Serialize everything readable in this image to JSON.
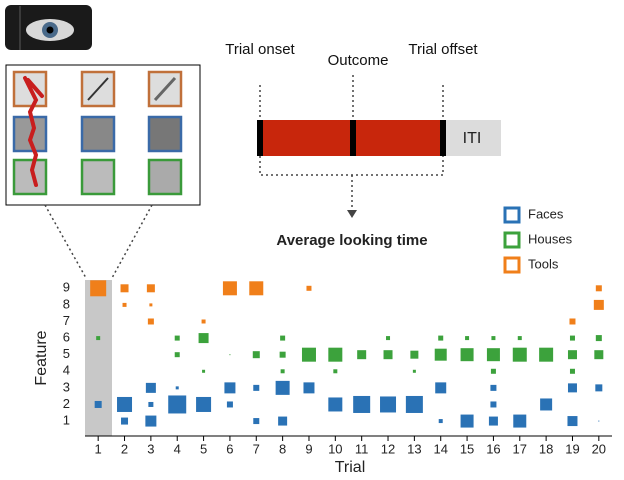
{
  "timeline": {
    "labels": [
      "Trial onset",
      "Outcome",
      "Trial offset"
    ],
    "iti": "ITI",
    "result": "Average looking time"
  },
  "chart_data": {
    "type": "matrix",
    "xlabel": "Trial",
    "ylabel": "Feature",
    "x": [
      1,
      2,
      3,
      4,
      5,
      6,
      7,
      8,
      9,
      10,
      11,
      12,
      13,
      14,
      15,
      16,
      17,
      18,
      19,
      20
    ],
    "xlim": [
      0.5,
      20.5
    ],
    "ylim": [
      0.1,
      9.5
    ],
    "yticks": [
      1,
      2,
      3,
      4,
      5,
      6,
      7,
      8,
      9
    ],
    "series": [
      {
        "name": "Faces",
        "color": "#2a72b5",
        "values": [
          [
            null,
            0.35,
            0.55,
            null,
            null,
            null,
            0.3,
            0.45,
            null,
            null,
            null,
            null,
            null,
            0.2,
            0.65,
            0.45,
            0.65,
            null,
            0.5,
            0.05
          ],
          [
            0.35,
            0.75,
            0.25,
            0.9,
            0.75,
            0.3,
            null,
            null,
            null,
            0.7,
            0.85,
            0.8,
            0.85,
            null,
            null,
            0.3,
            null,
            0.6,
            null,
            null
          ],
          [
            null,
            null,
            0.5,
            0.15,
            null,
            0.55,
            0.3,
            0.7,
            0.55,
            null,
            null,
            null,
            null,
            0.55,
            null,
            0.3,
            null,
            null,
            0.45,
            0.35
          ]
        ]
      },
      {
        "name": "Houses",
        "color": "#3ca23c",
        "values": [
          [
            null,
            null,
            null,
            null,
            0.15,
            null,
            null,
            0.2,
            null,
            0.2,
            null,
            null,
            0.15,
            null,
            null,
            0.25,
            null,
            null,
            0.25,
            null
          ],
          [
            null,
            null,
            null,
            0.25,
            null,
            0.05,
            0.35,
            0.3,
            0.7,
            0.7,
            0.45,
            0.45,
            0.4,
            0.6,
            0.65,
            0.65,
            0.7,
            0.7,
            0.45,
            0.45
          ],
          [
            0.2,
            null,
            null,
            0.25,
            0.5,
            null,
            null,
            0.25,
            null,
            null,
            null,
            0.2,
            null,
            0.25,
            0.2,
            0.2,
            0.2,
            null,
            0.25,
            0.3
          ]
        ]
      },
      {
        "name": "Tools",
        "color": "#f07f1a",
        "values": [
          [
            null,
            null,
            0.3,
            null,
            0.2,
            null,
            null,
            null,
            null,
            null,
            null,
            null,
            null,
            null,
            null,
            null,
            null,
            null,
            0.3,
            null
          ],
          [
            null,
            0.2,
            0.15,
            null,
            null,
            null,
            null,
            null,
            null,
            null,
            null,
            null,
            null,
            null,
            null,
            null,
            null,
            null,
            null,
            0.5
          ],
          [
            0.8,
            0.4,
            0.4,
            null,
            null,
            0.7,
            0.7,
            null,
            0.25,
            null,
            null,
            null,
            null,
            null,
            null,
            null,
            null,
            null,
            null,
            0.3
          ]
        ]
      }
    ]
  }
}
